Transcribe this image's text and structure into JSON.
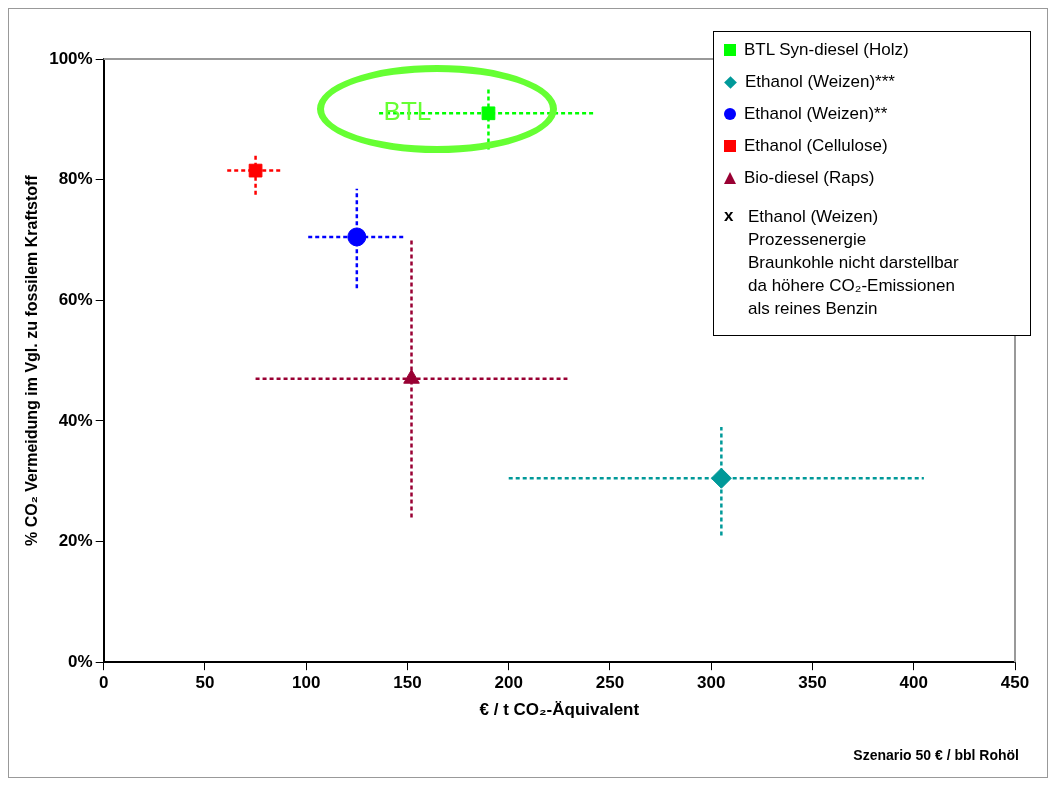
{
  "chart_data": {
    "type": "scatter",
    "xlabel": "€ / t CO₂-Äquivalent",
    "ylabel": "% CO₂ Vermeidung im Vgl. zu fossilem Kraftstoff",
    "xlim": [
      0,
      450
    ],
    "xticks": [
      0,
      50,
      100,
      150,
      200,
      250,
      300,
      350,
      400,
      450
    ],
    "ylim": [
      0,
      100
    ],
    "yticks": [
      {
        "value": 0,
        "label": "0%"
      },
      {
        "value": 20,
        "label": "20%"
      },
      {
        "value": 40,
        "label": "40%"
      },
      {
        "value": 60,
        "label": "60%"
      },
      {
        "value": 80,
        "label": "80%"
      },
      {
        "value": 100,
        "label": "100%"
      }
    ],
    "grid": false,
    "legend": "top right",
    "line_style": "dotted",
    "series": [
      {
        "name": "BTL Syn-diesel (Holz)",
        "color": "#00ff00",
        "marker": "square",
        "x": [
          190
        ],
        "values": [
          91
        ],
        "xerrors": [
          [
            136,
            243
          ]
        ],
        "errors": [
          [
            85,
            95
          ]
        ]
      },
      {
        "name": "Ethanol (Weizen)***",
        "color": "#009999",
        "marker": "diamond",
        "x": [
          305
        ],
        "values": [
          30.5
        ],
        "xerrors": [
          [
            200,
            405
          ]
        ],
        "errors": [
          [
            21,
            39
          ]
        ]
      },
      {
        "name": "Ethanol (Weizen)**",
        "color": "#0000ff",
        "marker": "circle",
        "x": [
          125
        ],
        "values": [
          70.5
        ],
        "xerrors": [
          [
            101,
            149
          ]
        ],
        "errors": [
          [
            62,
            78.5
          ]
        ]
      },
      {
        "name": "Ethanol (Cellulose)",
        "color": "#ff0000",
        "marker": "square",
        "x": [
          75
        ],
        "values": [
          81.5
        ],
        "xerrors": [
          [
            61,
            88
          ]
        ],
        "errors": [
          [
            77.5,
            84
          ]
        ]
      },
      {
        "name": "Bio-diesel (Raps)",
        "color": "#990033",
        "marker": "triangle",
        "x": [
          152
        ],
        "values": [
          47
        ],
        "xerrors": [
          [
            75,
            229
          ]
        ],
        "errors": [
          [
            24,
            70
          ]
        ]
      }
    ],
    "annotations": [
      "x",
      "Ethanol (Weizen)\nProzessenergie\nBraunkohle nicht darstellbar\nda höhere CO₂-Emissionen\nals reines Benzin",
      {
        "text": "BTL",
        "x": 150,
        "y": 91
      },
      "Szenario 50 € / bbl Rohöl"
    ]
  }
}
